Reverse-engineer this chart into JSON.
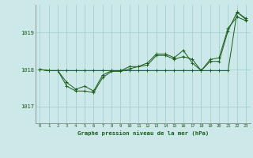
{
  "title": "Graphe pression niveau de la mer (hPa)",
  "bg_color": "#cce8e8",
  "plot_bg_color": "#cce8e8",
  "grid_color": "#99cccc",
  "line_color": "#1a5c1a",
  "marker_color": "#1a5c1a",
  "ylabel_ticks": [
    1017,
    1018,
    1019
  ],
  "xlim": [
    -0.5,
    23.5
  ],
  "ylim": [
    1016.55,
    1019.75
  ],
  "x_ticks": [
    0,
    1,
    2,
    3,
    4,
    5,
    6,
    7,
    8,
    9,
    10,
    11,
    12,
    13,
    14,
    15,
    16,
    17,
    18,
    19,
    20,
    21,
    22,
    23
  ],
  "series": [
    [
      1018.0,
      1017.97,
      1017.97,
      1017.97,
      1017.97,
      1017.97,
      1017.97,
      1017.97,
      1017.97,
      1017.97,
      1017.97,
      1017.97,
      1017.97,
      1017.97,
      1017.97,
      1017.97,
      1017.97,
      1017.97,
      1017.97,
      1017.97,
      1017.97,
      1017.97,
      1019.55,
      1019.35
    ],
    [
      1018.0,
      1017.97,
      1017.97,
      1017.55,
      1017.42,
      1017.42,
      1017.38,
      1017.78,
      1017.95,
      1017.95,
      1018.02,
      1018.08,
      1018.12,
      1018.38,
      1018.38,
      1018.28,
      1018.35,
      1018.28,
      1017.97,
      1018.22,
      1018.22,
      1019.05,
      1019.55,
      1019.38
    ],
    [
      1018.0,
      1017.97,
      1017.97,
      1017.65,
      1017.47,
      1017.55,
      1017.42,
      1017.85,
      1017.97,
      1017.97,
      1018.08,
      1018.08,
      1018.18,
      1018.42,
      1018.42,
      1018.32,
      1018.52,
      1018.18,
      1017.97,
      1018.27,
      1018.32,
      1019.12,
      1019.42,
      1019.32
    ]
  ]
}
